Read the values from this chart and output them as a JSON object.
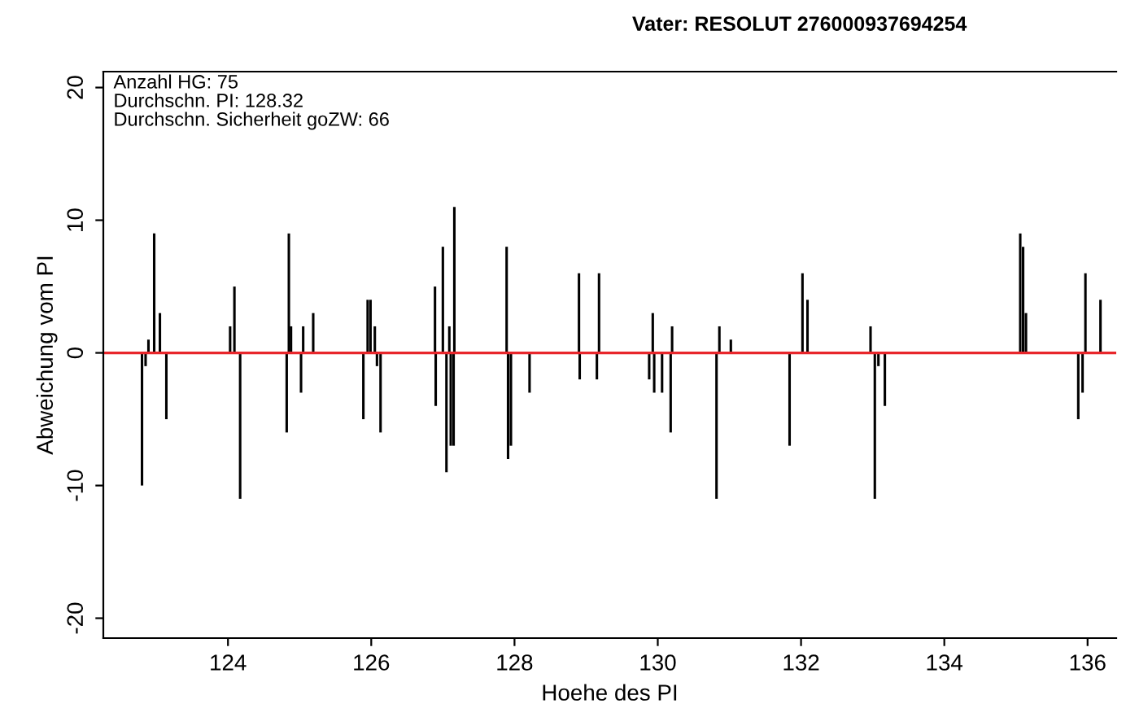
{
  "chart_data": {
    "type": "bar",
    "title": "Vater: RESOLUT 276000937694254",
    "xlabel": "Hoehe des PI",
    "ylabel": "Abweichung vom PI",
    "annotations": [
      "Anzahl HG: 75",
      "Durchschn. PI: 128.32",
      "Durchschn. Sicherheit goZW: 66"
    ],
    "x": [
      122.8,
      122.85,
      122.89,
      122.97,
      123.05,
      123.14,
      124.03,
      124.09,
      124.17,
      124.82,
      124.85,
      124.88,
      125.02,
      125.05,
      125.19,
      125.89,
      125.95,
      125.99,
      126.05,
      126.08,
      126.13,
      126.89,
      126.9,
      127.0,
      127.05,
      127.09,
      127.1,
      127.11,
      127.15,
      127.16,
      127.89,
      127.91,
      127.95,
      128.21,
      128.9,
      128.91,
      129.15,
      129.18,
      129.88,
      129.93,
      129.95,
      130.06,
      130.18,
      130.2,
      130.82,
      130.86,
      131.02,
      131.84,
      132.02,
      132.09,
      132.97,
      133.03,
      133.08,
      133.17,
      135.06,
      135.1,
      135.14,
      135.87,
      135.93,
      135.97,
      136.18
    ],
    "values": [
      -10,
      -1,
      1,
      9,
      3,
      -5,
      2,
      5,
      -11,
      -6,
      9,
      2,
      -3,
      2,
      3,
      -5,
      4,
      4,
      2,
      -1,
      -6,
      5,
      -4,
      8,
      -9,
      2,
      null,
      -7,
      -7,
      11,
      8,
      -8,
      -7,
      -3,
      6,
      -2,
      -2,
      6,
      -2,
      3,
      -3,
      -3,
      -6,
      2,
      -11,
      2,
      1,
      -7,
      6,
      4,
      2,
      -11,
      -1,
      -4,
      9,
      8,
      3,
      -5,
      -3,
      6,
      4
    ],
    "color": "#000000",
    "xlim": [
      122.26,
      136.4
    ],
    "ylim": [
      -21.5,
      21.2
    ],
    "xticks": [
      124,
      126,
      128,
      130,
      132,
      134,
      136
    ],
    "yticks": [
      -20,
      -10,
      0,
      10,
      20
    ],
    "ref_lines": [
      {
        "axis": "y",
        "value": 0,
        "color": "#e8262b"
      }
    ],
    "grid": false,
    "legend": false
  }
}
